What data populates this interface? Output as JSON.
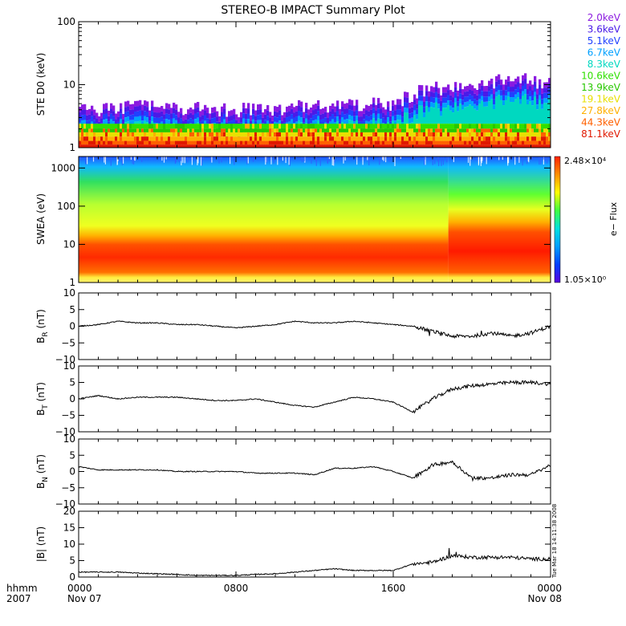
{
  "title": "STEREO-B IMPACT Summary Plot",
  "timestamp": "Tue Mar 18 14:11:38 2008",
  "time_axis": {
    "corner_top": "hhmm",
    "corner_bottom": "2007",
    "ticks": [
      {
        "label": "0000",
        "date": "Nov 07",
        "hour": 0
      },
      {
        "label": "0800",
        "date": "",
        "hour": 8
      },
      {
        "label": "1600",
        "date": "",
        "hour": 16
      },
      {
        "label": "0000",
        "date": "Nov 08",
        "hour": 24
      }
    ]
  },
  "colors": {
    "trace": "#000000",
    "energy_channels": [
      "#8b1ae0",
      "#4a1ae8",
      "#2040ff",
      "#00a0ff",
      "#00d8c0",
      "#30e000",
      "#28c800",
      "#e8e000",
      "#ffb000",
      "#ff6000",
      "#e01800"
    ]
  },
  "colorbar": {
    "max_label": "2.48×10⁴",
    "min_label": "1.05×10⁰",
    "quantity": "e− Flux",
    "stops": [
      "#5a00e0",
      "#0040ff",
      "#00a0ff",
      "#00e0e0",
      "#40ff40",
      "#ffff00",
      "#ff9000",
      "#ff2000"
    ]
  },
  "chart_data": [
    {
      "type": "bar",
      "ylabel": "STE D0 (keV)",
      "yscale": "log",
      "ylim": [
        1,
        100
      ],
      "yticks": [
        "1",
        "10",
        "100"
      ],
      "legend_placement": "right",
      "series": [
        {
          "name": "2.0keV"
        },
        {
          "name": "3.6keV"
        },
        {
          "name": "5.1keV"
        },
        {
          "name": "6.7keV"
        },
        {
          "name": "8.3keV"
        },
        {
          "name": "10.6keV"
        },
        {
          "name": "13.9keV"
        },
        {
          "name": "19.1keV"
        },
        {
          "name": "27.8keV"
        },
        {
          "name": "44.3keV"
        },
        {
          "name": "81.1keV"
        }
      ],
      "x": [
        0,
        4,
        8,
        12,
        16,
        17,
        18,
        20,
        21,
        22,
        23,
        24
      ],
      "envelope_top_keV": [
        4,
        4.5,
        4,
        4.5,
        5,
        7,
        9,
        9,
        10,
        14,
        11,
        10
      ]
    },
    {
      "type": "heatmap",
      "ylabel": "SWEA (eV)",
      "yscale": "log",
      "ylim": [
        1,
        2000
      ],
      "yticks": [
        "1",
        "10",
        "100",
        "1000"
      ],
      "x": [
        0,
        4,
        8,
        12,
        16,
        18,
        20,
        22,
        24
      ],
      "peak_energy_eV": [
        7,
        7,
        7,
        7,
        8,
        5,
        5,
        6,
        7
      ],
      "upper_band_eV": [
        120,
        130,
        120,
        120,
        100,
        30,
        50,
        60,
        70
      ]
    },
    {
      "type": "line",
      "ylabel": "B_R (nT)",
      "ylim": [
        -10,
        10
      ],
      "yticks": [
        "−10",
        "−5",
        "0",
        "5",
        "10"
      ],
      "x": [
        0,
        1,
        2,
        3,
        4,
        5,
        6,
        7,
        8,
        9,
        10,
        11,
        12,
        13,
        14,
        15,
        16,
        17,
        18,
        19,
        20,
        21,
        22,
        23,
        24
      ],
      "y": [
        0,
        0.5,
        1.5,
        1,
        1,
        0.5,
        0.5,
        0,
        -0.5,
        0,
        0.5,
        1.5,
        1,
        1,
        1.5,
        1,
        0.5,
        0,
        -1.5,
        -3,
        -3,
        -2,
        -3,
        -2,
        0
      ]
    },
    {
      "type": "line",
      "ylabel": "B_T (nT)",
      "ylim": [
        -10,
        10
      ],
      "yticks": [
        "−10",
        "−5",
        "0",
        "5",
        "10"
      ],
      "x": [
        0,
        1,
        2,
        3,
        4,
        5,
        6,
        7,
        8,
        9,
        10,
        11,
        12,
        13,
        14,
        15,
        16,
        17,
        18,
        19,
        20,
        21,
        22,
        23,
        24
      ],
      "y": [
        0,
        1,
        0,
        0.5,
        0.5,
        0.5,
        0,
        -0.5,
        -0.5,
        0,
        -1,
        -2,
        -2.5,
        -1,
        0.5,
        0,
        -1,
        -4,
        0,
        3,
        4,
        4.5,
        5,
        5,
        4.5
      ]
    },
    {
      "type": "line",
      "ylabel": "B_N (nT)",
      "ylim": [
        -10,
        10
      ],
      "yticks": [
        "−10",
        "−5",
        "0",
        "5",
        "10"
      ],
      "x": [
        0,
        1,
        2,
        3,
        4,
        5,
        6,
        7,
        8,
        9,
        10,
        11,
        12,
        13,
        14,
        15,
        16,
        17,
        18,
        19,
        20,
        21,
        22,
        23,
        24
      ],
      "y": [
        1.5,
        0.5,
        0.5,
        0.5,
        0.5,
        0,
        0,
        0,
        0,
        -0.5,
        -0.5,
        -0.5,
        -1,
        1,
        1,
        1.5,
        0,
        -2,
        2,
        3,
        -2,
        -2,
        -1,
        -1,
        2
      ]
    },
    {
      "type": "line",
      "ylabel": "|B| (nT)",
      "ylim": [
        0,
        20
      ],
      "yticks": [
        "0",
        "5",
        "10",
        "15",
        "20"
      ],
      "x": [
        0,
        1,
        2,
        3,
        4,
        5,
        6,
        7,
        8,
        9,
        10,
        11,
        12,
        13,
        14,
        15,
        16,
        17,
        18,
        19,
        20,
        21,
        22,
        23,
        24
      ],
      "y": [
        1.5,
        1.5,
        1.5,
        1.2,
        1,
        0.8,
        0.5,
        0.5,
        0.5,
        0.8,
        1,
        1.5,
        2,
        2.5,
        2,
        2,
        2,
        4,
        4.5,
        6.5,
        6,
        6,
        6,
        5.5,
        5.5
      ]
    }
  ]
}
